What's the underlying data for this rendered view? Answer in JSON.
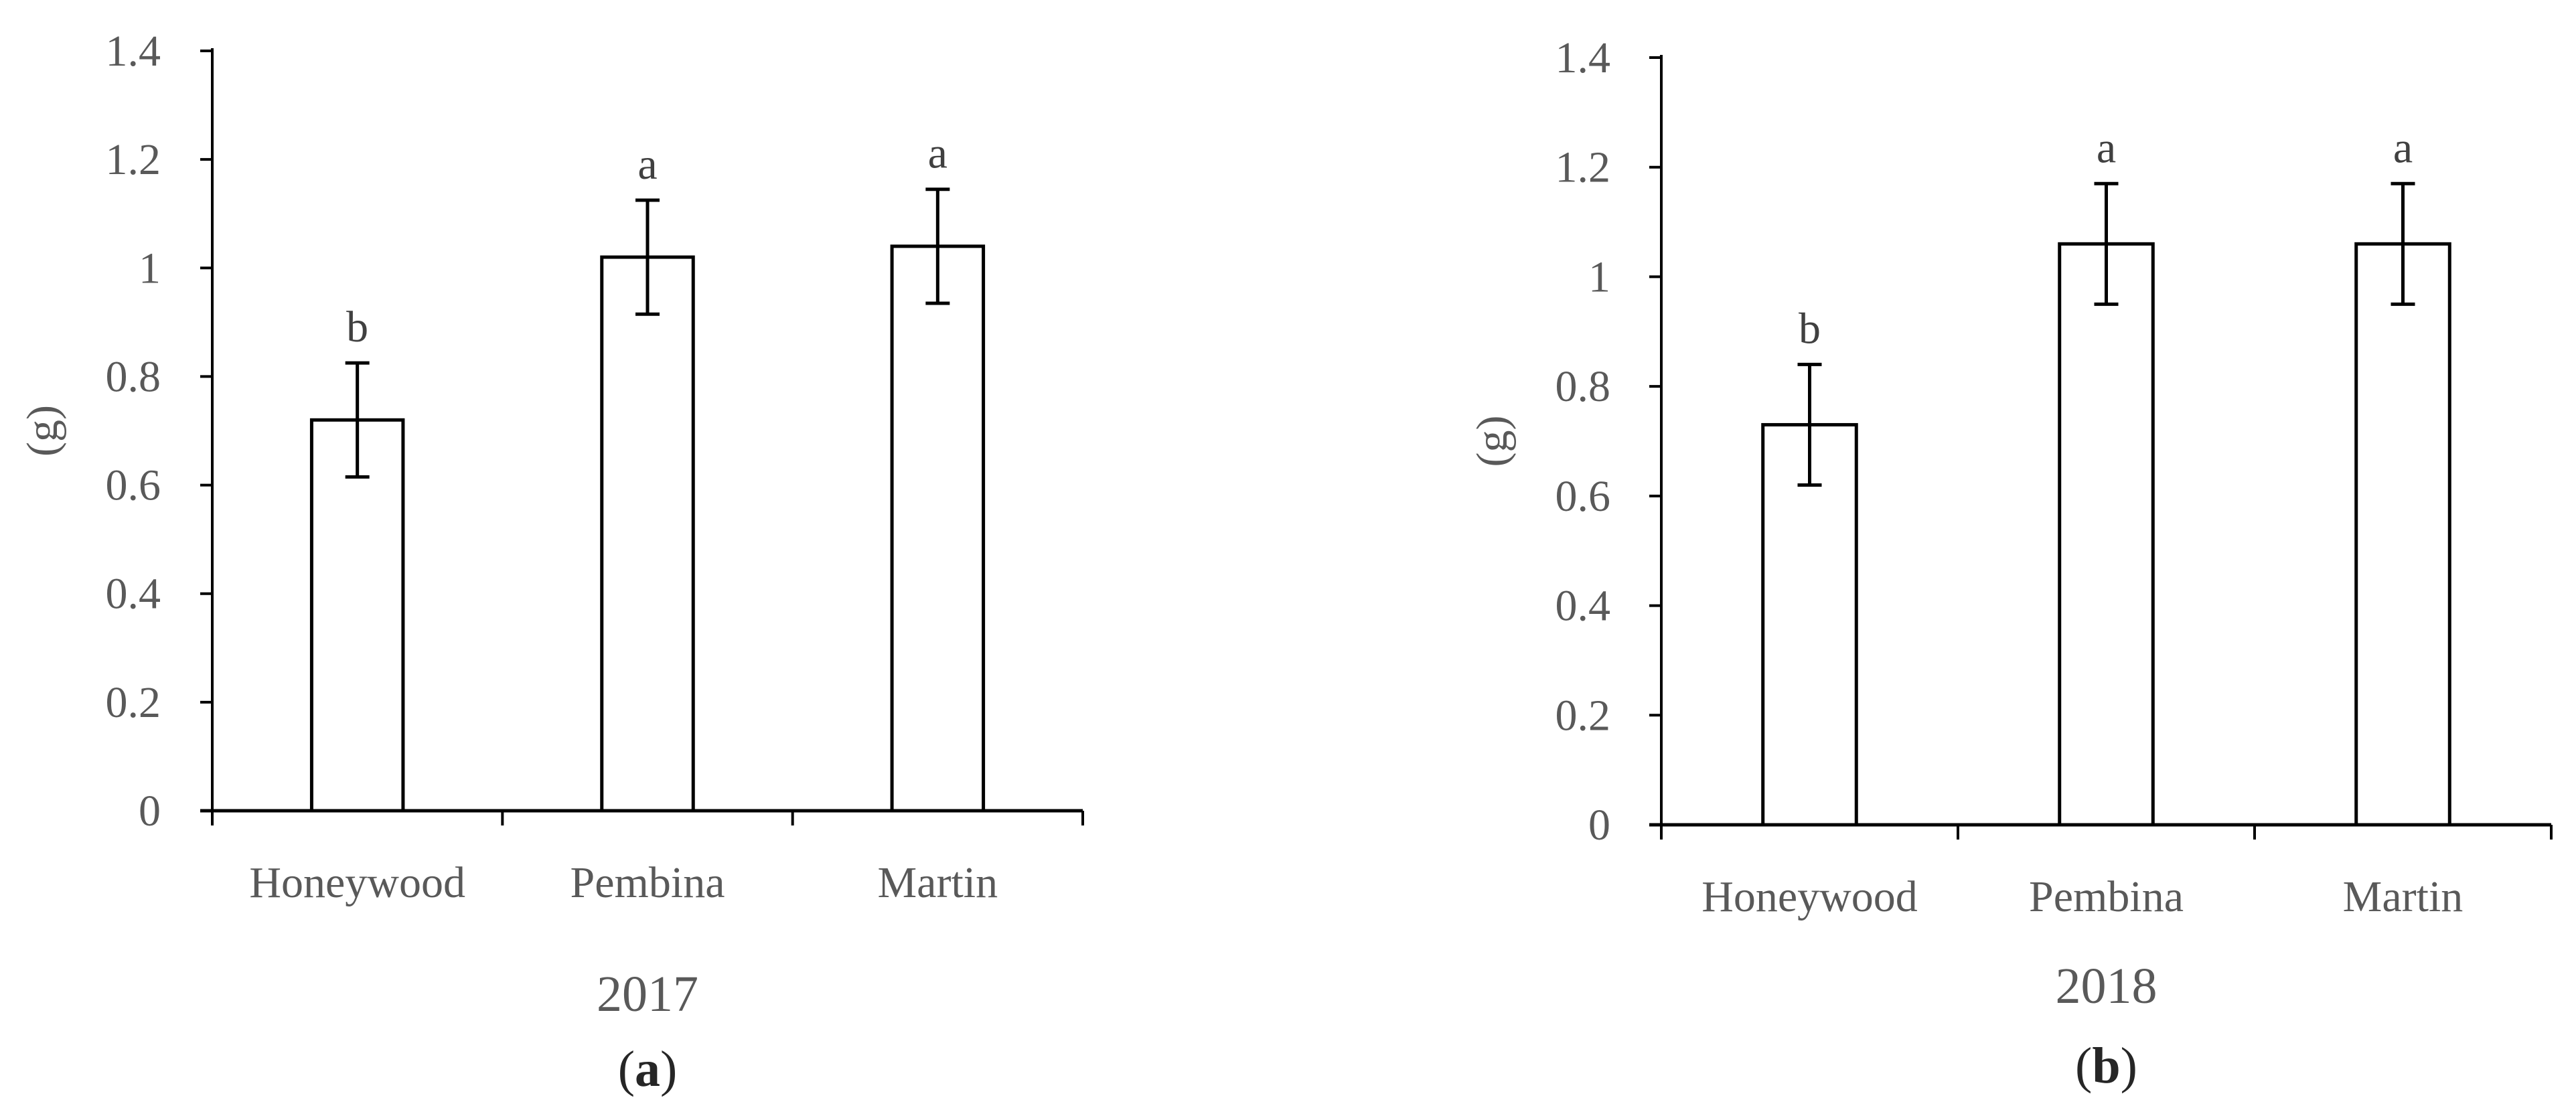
{
  "chart_data": [
    {
      "type": "bar",
      "categories": [
        "Honeywood",
        "Pembina",
        "Martin"
      ],
      "values": [
        0.72,
        1.02,
        1.04
      ],
      "errors": [
        0.105,
        0.105,
        0.105
      ],
      "significance": [
        "b",
        "a",
        "a"
      ],
      "ylabel": "(g)",
      "xlabel": "2017",
      "ylim": [
        0,
        1.4
      ],
      "yticks": [
        "0",
        "0.2",
        "0.4",
        "0.6",
        "0.8",
        "1",
        "1.2",
        "1.4"
      ],
      "panel_label": {
        "open": "(",
        "letter": "a",
        "close": ")"
      },
      "grid": false,
      "colors": {
        "bar_fill": "#ffffff",
        "bar_stroke": "#000000",
        "axis": "#000000"
      }
    },
    {
      "type": "bar",
      "categories": [
        "Honeywood",
        "Pembina",
        "Martin"
      ],
      "values": [
        0.73,
        1.06,
        1.06
      ],
      "errors": [
        0.11,
        0.11,
        0.11
      ],
      "significance": [
        "b",
        "a",
        "a"
      ],
      "ylabel": "(g)",
      "xlabel": "2018",
      "ylim": [
        0,
        1.4
      ],
      "yticks": [
        "0",
        "0.2",
        "0.4",
        "0.6",
        "0.8",
        "1",
        "1.2",
        "1.4"
      ],
      "panel_label": {
        "open": "(",
        "letter": "b",
        "close": ")"
      },
      "grid": false,
      "colors": {
        "bar_fill": "#ffffff",
        "bar_stroke": "#000000",
        "axis": "#000000"
      }
    }
  ]
}
